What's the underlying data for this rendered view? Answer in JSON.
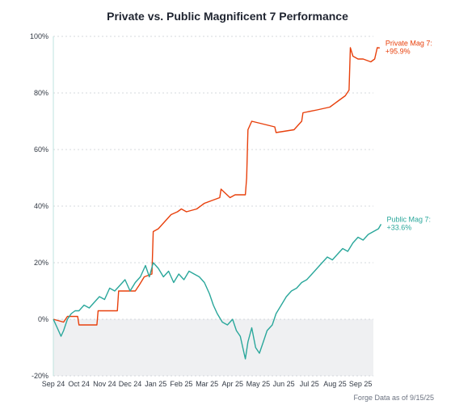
{
  "chart_data": {
    "type": "line",
    "title": "Private vs. Public Magnificent 7 Performance",
    "xlabel": "",
    "ylabel": "",
    "x_ticks": [
      "Sep 24",
      "Oct 24",
      "Nov 24",
      "Dec 24",
      "Jan 25",
      "Feb 25",
      "Mar 25",
      "Apr 25",
      "May 25",
      "Jun 25",
      "Jul 25",
      "Aug 25",
      "Sep 25"
    ],
    "x_range": [
      0,
      12.5
    ],
    "y_ticks": [
      "100%",
      "80%",
      "60%",
      "40%",
      "20%",
      "0%",
      "-20%"
    ],
    "y_tick_values": [
      100,
      80,
      60,
      40,
      20,
      0,
      -20
    ],
    "ylim": [
      -20,
      100
    ],
    "grid": true,
    "negative_region_shaded": true,
    "legend": "inline end labels",
    "series": [
      {
        "name": "Private Mag 7",
        "end_label": "Private Mag 7:",
        "end_value": "+95.9%",
        "color": "#e8400c",
        "points": [
          [
            0.0,
            0
          ],
          [
            0.4,
            -1
          ],
          [
            0.55,
            1
          ],
          [
            0.95,
            1
          ],
          [
            1.0,
            -2
          ],
          [
            1.7,
            -2
          ],
          [
            1.75,
            3
          ],
          [
            2.5,
            3
          ],
          [
            2.55,
            10
          ],
          [
            3.2,
            10
          ],
          [
            3.35,
            12
          ],
          [
            3.55,
            15
          ],
          [
            3.85,
            16
          ],
          [
            3.9,
            31
          ],
          [
            4.1,
            32
          ],
          [
            4.3,
            34
          ],
          [
            4.6,
            37
          ],
          [
            4.85,
            38
          ],
          [
            5.0,
            39
          ],
          [
            5.2,
            38
          ],
          [
            5.6,
            39
          ],
          [
            5.9,
            41
          ],
          [
            6.2,
            42
          ],
          [
            6.5,
            43
          ],
          [
            6.55,
            46
          ],
          [
            6.9,
            43
          ],
          [
            7.1,
            44
          ],
          [
            7.5,
            44
          ],
          [
            7.55,
            50
          ],
          [
            7.6,
            67
          ],
          [
            7.75,
            70
          ],
          [
            8.2,
            69
          ],
          [
            8.65,
            68
          ],
          [
            8.7,
            66
          ],
          [
            9.4,
            67
          ],
          [
            9.7,
            70
          ],
          [
            9.75,
            73
          ],
          [
            10.3,
            74
          ],
          [
            10.8,
            75
          ],
          [
            11.1,
            77
          ],
          [
            11.4,
            79
          ],
          [
            11.55,
            81
          ],
          [
            11.6,
            96
          ],
          [
            11.7,
            93
          ],
          [
            11.9,
            92
          ],
          [
            12.1,
            92
          ],
          [
            12.4,
            91
          ],
          [
            12.55,
            92
          ],
          [
            12.65,
            96
          ],
          [
            12.75,
            95.9
          ]
        ]
      },
      {
        "name": "Public Mag 7",
        "end_label": "Public Mag 7:",
        "end_value": "+33.6%",
        "color": "#2aa79b",
        "points": [
          [
            0.0,
            0
          ],
          [
            0.15,
            -3
          ],
          [
            0.3,
            -6
          ],
          [
            0.4,
            -4
          ],
          [
            0.55,
            0
          ],
          [
            0.7,
            2
          ],
          [
            0.85,
            3
          ],
          [
            1.0,
            3
          ],
          [
            1.2,
            5
          ],
          [
            1.4,
            4
          ],
          [
            1.6,
            6
          ],
          [
            1.8,
            8
          ],
          [
            2.0,
            7
          ],
          [
            2.2,
            11
          ],
          [
            2.4,
            10
          ],
          [
            2.6,
            12
          ],
          [
            2.8,
            14
          ],
          [
            3.0,
            10
          ],
          [
            3.2,
            13
          ],
          [
            3.4,
            15
          ],
          [
            3.6,
            19
          ],
          [
            3.75,
            15
          ],
          [
            3.9,
            20
          ],
          [
            4.1,
            18
          ],
          [
            4.3,
            15
          ],
          [
            4.5,
            17
          ],
          [
            4.7,
            13
          ],
          [
            4.9,
            16
          ],
          [
            5.1,
            14
          ],
          [
            5.3,
            17
          ],
          [
            5.5,
            16
          ],
          [
            5.7,
            15
          ],
          [
            5.9,
            13
          ],
          [
            6.1,
            9
          ],
          [
            6.25,
            5
          ],
          [
            6.4,
            2
          ],
          [
            6.6,
            -1
          ],
          [
            6.8,
            -2
          ],
          [
            7.0,
            0
          ],
          [
            7.15,
            -4
          ],
          [
            7.3,
            -6
          ],
          [
            7.45,
            -12
          ],
          [
            7.5,
            -14
          ],
          [
            7.6,
            -8
          ],
          [
            7.75,
            -3
          ],
          [
            7.9,
            -10
          ],
          [
            8.05,
            -12
          ],
          [
            8.2,
            -8
          ],
          [
            8.35,
            -4
          ],
          [
            8.55,
            -2
          ],
          [
            8.7,
            2
          ],
          [
            8.9,
            5
          ],
          [
            9.1,
            8
          ],
          [
            9.3,
            10
          ],
          [
            9.5,
            11
          ],
          [
            9.7,
            13
          ],
          [
            9.9,
            14
          ],
          [
            10.1,
            16
          ],
          [
            10.3,
            18
          ],
          [
            10.5,
            20
          ],
          [
            10.7,
            22
          ],
          [
            10.9,
            21
          ],
          [
            11.1,
            23
          ],
          [
            11.3,
            25
          ],
          [
            11.5,
            24
          ],
          [
            11.7,
            27
          ],
          [
            11.9,
            29
          ],
          [
            12.1,
            28
          ],
          [
            12.3,
            30
          ],
          [
            12.5,
            31
          ],
          [
            12.7,
            32
          ],
          [
            12.8,
            33.6
          ]
        ]
      }
    ],
    "source_note": "Forge Data as of 9/15/25"
  }
}
